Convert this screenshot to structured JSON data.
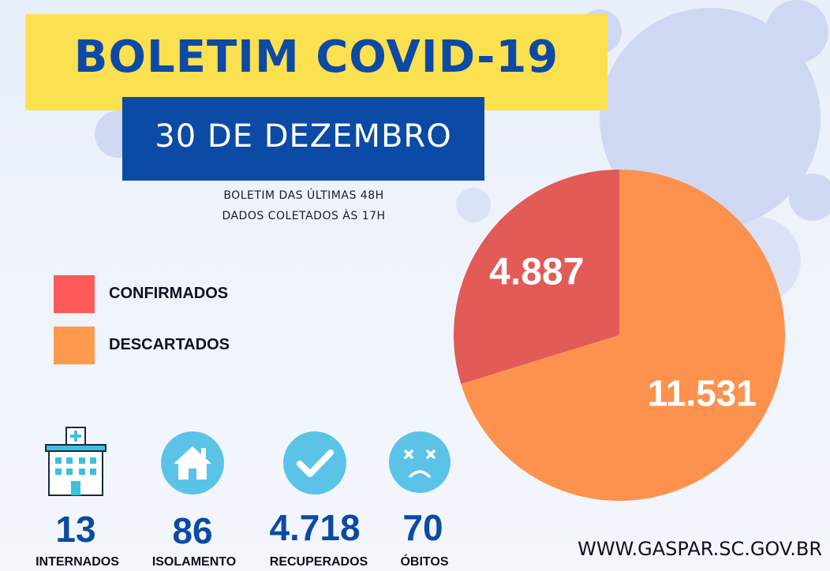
{
  "header": {
    "title": "BOLETIM COVID-19",
    "date": "30 DE DEZEMBRO",
    "subtitle_line1": "BOLETIM DAS ÚLTIMAS 48H",
    "subtitle_line2": "DADOS COLETADOS ÀS  17H"
  },
  "legend": [
    {
      "label": "CONFIRMADOS",
      "color": "#fe5a5a"
    },
    {
      "label": "DESCARTADOS",
      "color": "#fe9a4e"
    }
  ],
  "chart_data": {
    "type": "pie",
    "slices": [
      {
        "name": "CONFIRMADOS",
        "value": 4887,
        "label": "4.887",
        "color": "#e25b57"
      },
      {
        "name": "DESCARTADOS",
        "value": 11531,
        "label": "11.531",
        "color": "#fc924d"
      }
    ],
    "legend_position": "left"
  },
  "stats": [
    {
      "value": "13",
      "label": "INTERNADOS",
      "icon": "hospital-icon"
    },
    {
      "value": "86",
      "label": "ISOLAMENTO",
      "icon": "home-icon"
    },
    {
      "value": "4.718",
      "label": "RECUPERADOS",
      "icon": "checkmark-icon"
    },
    {
      "value": "70",
      "label": "ÓBITOS",
      "icon": "sad-face-icon"
    }
  ],
  "colors": {
    "brand_blue": "#0b4aa5",
    "title_yellow": "#fbe04f",
    "icon_circle": "#5bc3e8"
  },
  "footer": {
    "website": "WWW.GASPAR.SC.GOV.BR"
  }
}
